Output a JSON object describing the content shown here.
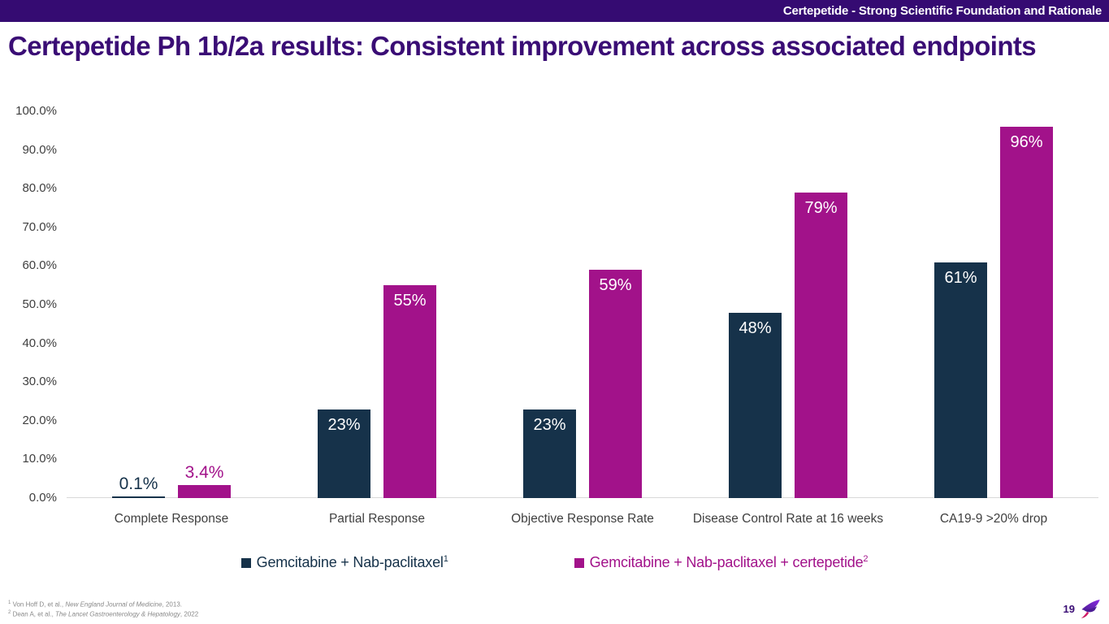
{
  "topbar": {
    "text": "Certepetide - Strong Scientific Foundation and Rationale"
  },
  "title": "Certepetide Ph 1b/2a results: Consistent improvement across associated endpoints",
  "chart_data": {
    "type": "bar",
    "categories": [
      "Complete Response",
      "Partial Response",
      "Objective Response Rate",
      "Disease Control Rate at 16 weeks",
      "CA19-9 >20% drop"
    ],
    "series": [
      {
        "name": "Gemcitabine + Nab-paclitaxel",
        "superscript": "1",
        "color": "#16324a",
        "values": [
          0.1,
          23,
          23,
          48,
          61
        ],
        "labels": [
          "0.1%",
          "23%",
          "23%",
          "48%",
          "61%"
        ]
      },
      {
        "name": "Gemcitabine + Nab-paclitaxel + certepetide",
        "superscript": "2",
        "color": "#a2128a",
        "values": [
          3.4,
          55,
          59,
          79,
          96
        ],
        "labels": [
          "3.4%",
          "55%",
          "59%",
          "79%",
          "96%"
        ]
      }
    ],
    "title": "",
    "xlabel": "",
    "ylabel": "",
    "ylim": [
      0,
      100
    ],
    "y_ticks": [
      "100.0%",
      "90.0%",
      "80.0%",
      "70.0%",
      "60.0%",
      "50.0%",
      "40.0%",
      "30.0%",
      "20.0%",
      "10.0%",
      "0.0%"
    ],
    "grid": false,
    "legend_position": "bottom"
  },
  "footnotes": [
    {
      "sup": "1",
      "before": " Von Hoff D, et al., ",
      "journal": "New England Journal of Medicine",
      "after": ", 2013."
    },
    {
      "sup": "2",
      "before": " Dean A, et al., ",
      "journal": "The Lancet Gastroenterology & Hepatology",
      "after": ", 2022"
    }
  ],
  "footer": {
    "page_number": "19",
    "logo": "hummingbird-logo"
  },
  "colors": {
    "banner_bg": "#350b72",
    "title_text": "#3a0d75",
    "series1_navy": "#16324a",
    "series2_magenta": "#a2128a",
    "axis_text": "#3f3f3f",
    "baseline": "#d9d9d9",
    "footnote_text": "#8a8a8a",
    "logo_purple": "#7b2ff2",
    "logo_deep_purple": "#4c1d95",
    "logo_crimson": "#d91a6d"
  }
}
